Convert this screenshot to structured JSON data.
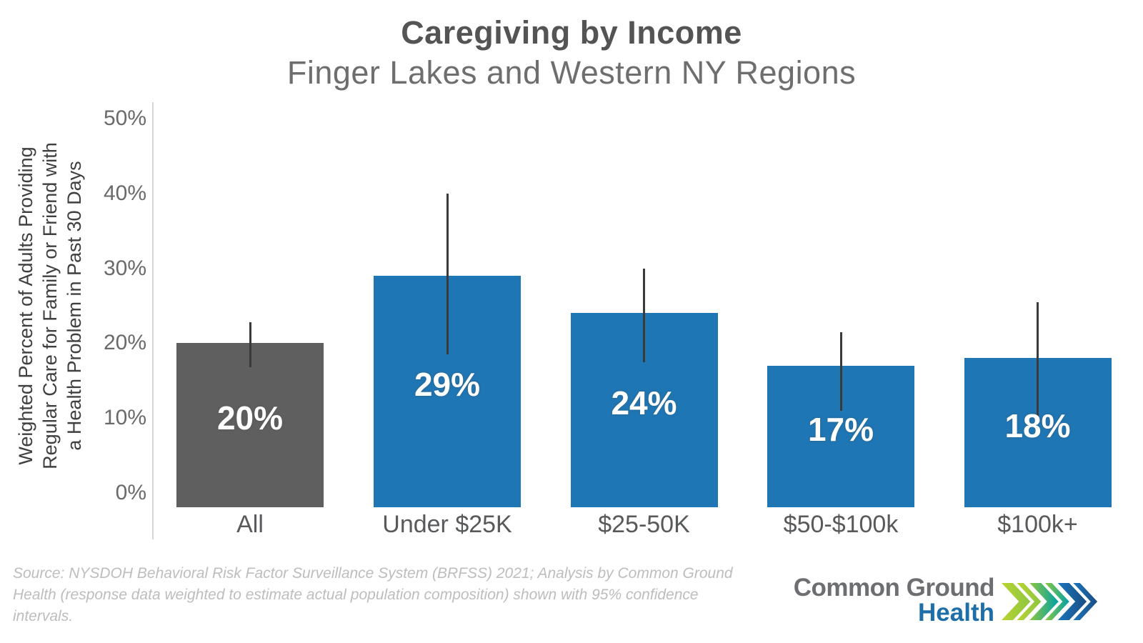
{
  "chart_data": {
    "type": "bar",
    "title": "Caregiving by Income",
    "subtitle": "Finger Lakes and Western NY Regions",
    "categories": [
      "All",
      "Under $25K",
      "$25-50K",
      "$50-$100k",
      "$100k+"
    ],
    "values": [
      20,
      29,
      24,
      17,
      18
    ],
    "bar_labels": [
      "20%",
      "29%",
      "24%",
      "17%",
      "18%"
    ],
    "ci_low": [
      16.8,
      18.5,
      17.5,
      11,
      10
    ],
    "ci_high": [
      22.8,
      40,
      30,
      21.5,
      25.5
    ],
    "bar_colors": [
      "#5F5F5F",
      "#1F76B4",
      "#1F76B4",
      "#1F76B4",
      "#1F76B4"
    ],
    "error_bar_color": "#3A3A3A",
    "ylabel_lines": [
      "Weighted Percent of Adults Providing",
      "Regular Care for Family or Friend with",
      "a Health Problem in Past 30 Days"
    ],
    "ytick_values": [
      0,
      10,
      20,
      30,
      40,
      50
    ],
    "ytick_labels": [
      "0%",
      "10%",
      "20%",
      "30%",
      "40%",
      "50%"
    ],
    "ylim": [
      0,
      50
    ],
    "gridlines": false,
    "legend": false
  },
  "footer": {
    "source_text": "Source: NYSDOH Behavioral Risk Factor Surveillance System (BRFSS) 2021; Analysis by Common Ground Health (response data weighted to estimate actual population composition) shown with 95% confidence intervals.",
    "logo": {
      "line1": "Common Ground",
      "line2": "Health",
      "chevrons": [
        {
          "from": "#B9D432",
          "to": "#8DC63F"
        },
        {
          "from": "#8DC63F",
          "to": "#00A1A7"
        },
        {
          "from": "#1C75BC",
          "to": "#1A4E82"
        }
      ]
    }
  }
}
